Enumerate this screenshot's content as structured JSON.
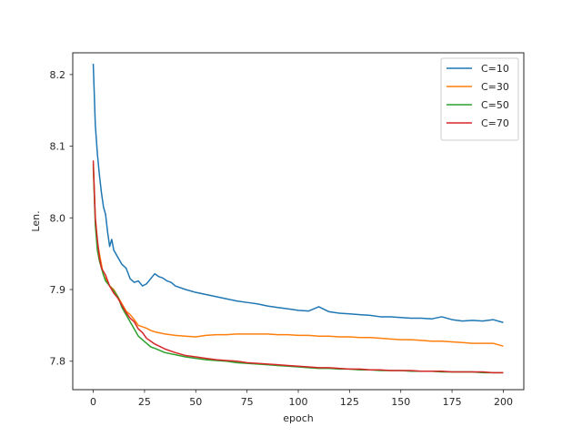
{
  "chart_data": {
    "type": "line",
    "title": "",
    "xlabel": "epoch",
    "ylabel": "Len.",
    "xlim": [
      -10,
      210
    ],
    "ylim": [
      7.7603,
      8.2303
    ],
    "xticks": [
      0,
      25,
      50,
      75,
      100,
      125,
      150,
      175,
      200
    ],
    "yticks": [
      7.8,
      7.9,
      8.0,
      8.1,
      8.2
    ],
    "ytick_labels": [
      "7.8",
      "7.9",
      "8.0",
      "8.1",
      "8.2"
    ],
    "grid": false,
    "legend_position": "top-right",
    "series": [
      {
        "name": "C=10",
        "color": "#1f77b4",
        "points": [
          [
            0,
            8.215
          ],
          [
            1,
            8.13
          ],
          [
            2,
            8.09
          ],
          [
            3,
            8.06
          ],
          [
            4,
            8.035
          ],
          [
            5,
            8.015
          ],
          [
            6,
            8.005
          ],
          [
            7,
            7.98
          ],
          [
            8,
            7.96
          ],
          [
            9,
            7.97
          ],
          [
            10,
            7.955
          ],
          [
            12,
            7.945
          ],
          [
            14,
            7.935
          ],
          [
            16,
            7.93
          ],
          [
            18,
            7.915
          ],
          [
            20,
            7.91
          ],
          [
            22,
            7.912
          ],
          [
            24,
            7.905
          ],
          [
            26,
            7.908
          ],
          [
            28,
            7.915
          ],
          [
            30,
            7.922
          ],
          [
            32,
            7.918
          ],
          [
            34,
            7.916
          ],
          [
            36,
            7.912
          ],
          [
            38,
            7.91
          ],
          [
            40,
            7.905
          ],
          [
            45,
            7.9
          ],
          [
            50,
            7.896
          ],
          [
            55,
            7.893
          ],
          [
            60,
            7.89
          ],
          [
            65,
            7.887
          ],
          [
            70,
            7.884
          ],
          [
            75,
            7.882
          ],
          [
            80,
            7.88
          ],
          [
            85,
            7.877
          ],
          [
            90,
            7.875
          ],
          [
            95,
            7.873
          ],
          [
            100,
            7.871
          ],
          [
            105,
            7.87
          ],
          [
            110,
            7.876
          ],
          [
            115,
            7.869
          ],
          [
            120,
            7.867
          ],
          [
            125,
            7.866
          ],
          [
            130,
            7.865
          ],
          [
            135,
            7.864
          ],
          [
            140,
            7.862
          ],
          [
            145,
            7.862
          ],
          [
            150,
            7.861
          ],
          [
            155,
            7.86
          ],
          [
            160,
            7.86
          ],
          [
            165,
            7.859
          ],
          [
            170,
            7.862
          ],
          [
            175,
            7.858
          ],
          [
            180,
            7.856
          ],
          [
            185,
            7.857
          ],
          [
            190,
            7.856
          ],
          [
            195,
            7.858
          ],
          [
            200,
            7.854
          ]
        ]
      },
      {
        "name": "C=30",
        "color": "#ff7f0e",
        "points": [
          [
            0,
            8.07
          ],
          [
            1,
            8.0
          ],
          [
            2,
            7.965
          ],
          [
            3,
            7.95
          ],
          [
            4,
            7.935
          ],
          [
            5,
            7.92
          ],
          [
            6,
            7.915
          ],
          [
            8,
            7.905
          ],
          [
            10,
            7.9
          ],
          [
            12,
            7.89
          ],
          [
            14,
            7.88
          ],
          [
            16,
            7.87
          ],
          [
            18,
            7.865
          ],
          [
            20,
            7.858
          ],
          [
            22,
            7.85
          ],
          [
            24,
            7.848
          ],
          [
            26,
            7.846
          ],
          [
            28,
            7.843
          ],
          [
            30,
            7.841
          ],
          [
            35,
            7.838
          ],
          [
            40,
            7.836
          ],
          [
            45,
            7.835
          ],
          [
            50,
            7.834
          ],
          [
            55,
            7.836
          ],
          [
            60,
            7.837
          ],
          [
            65,
            7.837
          ],
          [
            70,
            7.838
          ],
          [
            75,
            7.838
          ],
          [
            80,
            7.838
          ],
          [
            85,
            7.838
          ],
          [
            90,
            7.837
          ],
          [
            95,
            7.837
          ],
          [
            100,
            7.836
          ],
          [
            105,
            7.836
          ],
          [
            110,
            7.835
          ],
          [
            115,
            7.835
          ],
          [
            120,
            7.834
          ],
          [
            125,
            7.834
          ],
          [
            130,
            7.833
          ],
          [
            135,
            7.833
          ],
          [
            140,
            7.832
          ],
          [
            145,
            7.831
          ],
          [
            150,
            7.83
          ],
          [
            155,
            7.83
          ],
          [
            160,
            7.829
          ],
          [
            165,
            7.828
          ],
          [
            170,
            7.828
          ],
          [
            175,
            7.827
          ],
          [
            180,
            7.826
          ],
          [
            185,
            7.825
          ],
          [
            190,
            7.825
          ],
          [
            195,
            7.825
          ],
          [
            200,
            7.821
          ]
        ]
      },
      {
        "name": "C=50",
        "color": "#2ca02c",
        "points": [
          [
            0,
            8.075
          ],
          [
            1,
            7.99
          ],
          [
            2,
            7.955
          ],
          [
            3,
            7.94
          ],
          [
            4,
            7.93
          ],
          [
            5,
            7.92
          ],
          [
            6,
            7.912
          ],
          [
            8,
            7.905
          ],
          [
            10,
            7.898
          ],
          [
            12,
            7.89
          ],
          [
            14,
            7.875
          ],
          [
            16,
            7.865
          ],
          [
            18,
            7.855
          ],
          [
            20,
            7.845
          ],
          [
            22,
            7.835
          ],
          [
            24,
            7.83
          ],
          [
            26,
            7.825
          ],
          [
            28,
            7.82
          ],
          [
            30,
            7.818
          ],
          [
            35,
            7.812
          ],
          [
            40,
            7.809
          ],
          [
            45,
            7.806
          ],
          [
            50,
            7.804
          ],
          [
            55,
            7.802
          ],
          [
            60,
            7.801
          ],
          [
            65,
            7.8
          ],
          [
            70,
            7.798
          ],
          [
            75,
            7.797
          ],
          [
            80,
            7.796
          ],
          [
            85,
            7.795
          ],
          [
            90,
            7.794
          ],
          [
            95,
            7.793
          ],
          [
            100,
            7.792
          ],
          [
            105,
            7.791
          ],
          [
            110,
            7.79
          ],
          [
            115,
            7.79
          ],
          [
            120,
            7.789
          ],
          [
            125,
            7.789
          ],
          [
            130,
            7.788
          ],
          [
            135,
            7.788
          ],
          [
            140,
            7.787
          ],
          [
            145,
            7.787
          ],
          [
            150,
            7.787
          ],
          [
            155,
            7.786
          ],
          [
            160,
            7.786
          ],
          [
            165,
            7.786
          ],
          [
            170,
            7.785
          ],
          [
            175,
            7.785
          ],
          [
            180,
            7.785
          ],
          [
            185,
            7.785
          ],
          [
            190,
            7.784
          ],
          [
            195,
            7.784
          ],
          [
            200,
            7.784
          ]
        ]
      },
      {
        "name": "C=70",
        "color": "#d62728",
        "points": [
          [
            0,
            8.08
          ],
          [
            1,
            8.0
          ],
          [
            2,
            7.97
          ],
          [
            3,
            7.945
          ],
          [
            4,
            7.93
          ],
          [
            5,
            7.925
          ],
          [
            6,
            7.92
          ],
          [
            8,
            7.905
          ],
          [
            10,
            7.895
          ],
          [
            12,
            7.888
          ],
          [
            14,
            7.878
          ],
          [
            16,
            7.868
          ],
          [
            18,
            7.86
          ],
          [
            20,
            7.855
          ],
          [
            22,
            7.845
          ],
          [
            24,
            7.84
          ],
          [
            26,
            7.832
          ],
          [
            28,
            7.828
          ],
          [
            30,
            7.824
          ],
          [
            35,
            7.817
          ],
          [
            40,
            7.812
          ],
          [
            45,
            7.808
          ],
          [
            50,
            7.806
          ],
          [
            55,
            7.804
          ],
          [
            60,
            7.802
          ],
          [
            65,
            7.801
          ],
          [
            70,
            7.8
          ],
          [
            75,
            7.798
          ],
          [
            80,
            7.797
          ],
          [
            85,
            7.796
          ],
          [
            90,
            7.795
          ],
          [
            95,
            7.794
          ],
          [
            100,
            7.793
          ],
          [
            105,
            7.792
          ],
          [
            110,
            7.791
          ],
          [
            115,
            7.791
          ],
          [
            120,
            7.79
          ],
          [
            125,
            7.789
          ],
          [
            130,
            7.789
          ],
          [
            135,
            7.788
          ],
          [
            140,
            7.788
          ],
          [
            145,
            7.787
          ],
          [
            150,
            7.787
          ],
          [
            155,
            7.787
          ],
          [
            160,
            7.786
          ],
          [
            165,
            7.786
          ],
          [
            170,
            7.786
          ],
          [
            175,
            7.785
          ],
          [
            180,
            7.785
          ],
          [
            185,
            7.785
          ],
          [
            190,
            7.785
          ],
          [
            195,
            7.784
          ],
          [
            200,
            7.784
          ]
        ]
      }
    ]
  }
}
